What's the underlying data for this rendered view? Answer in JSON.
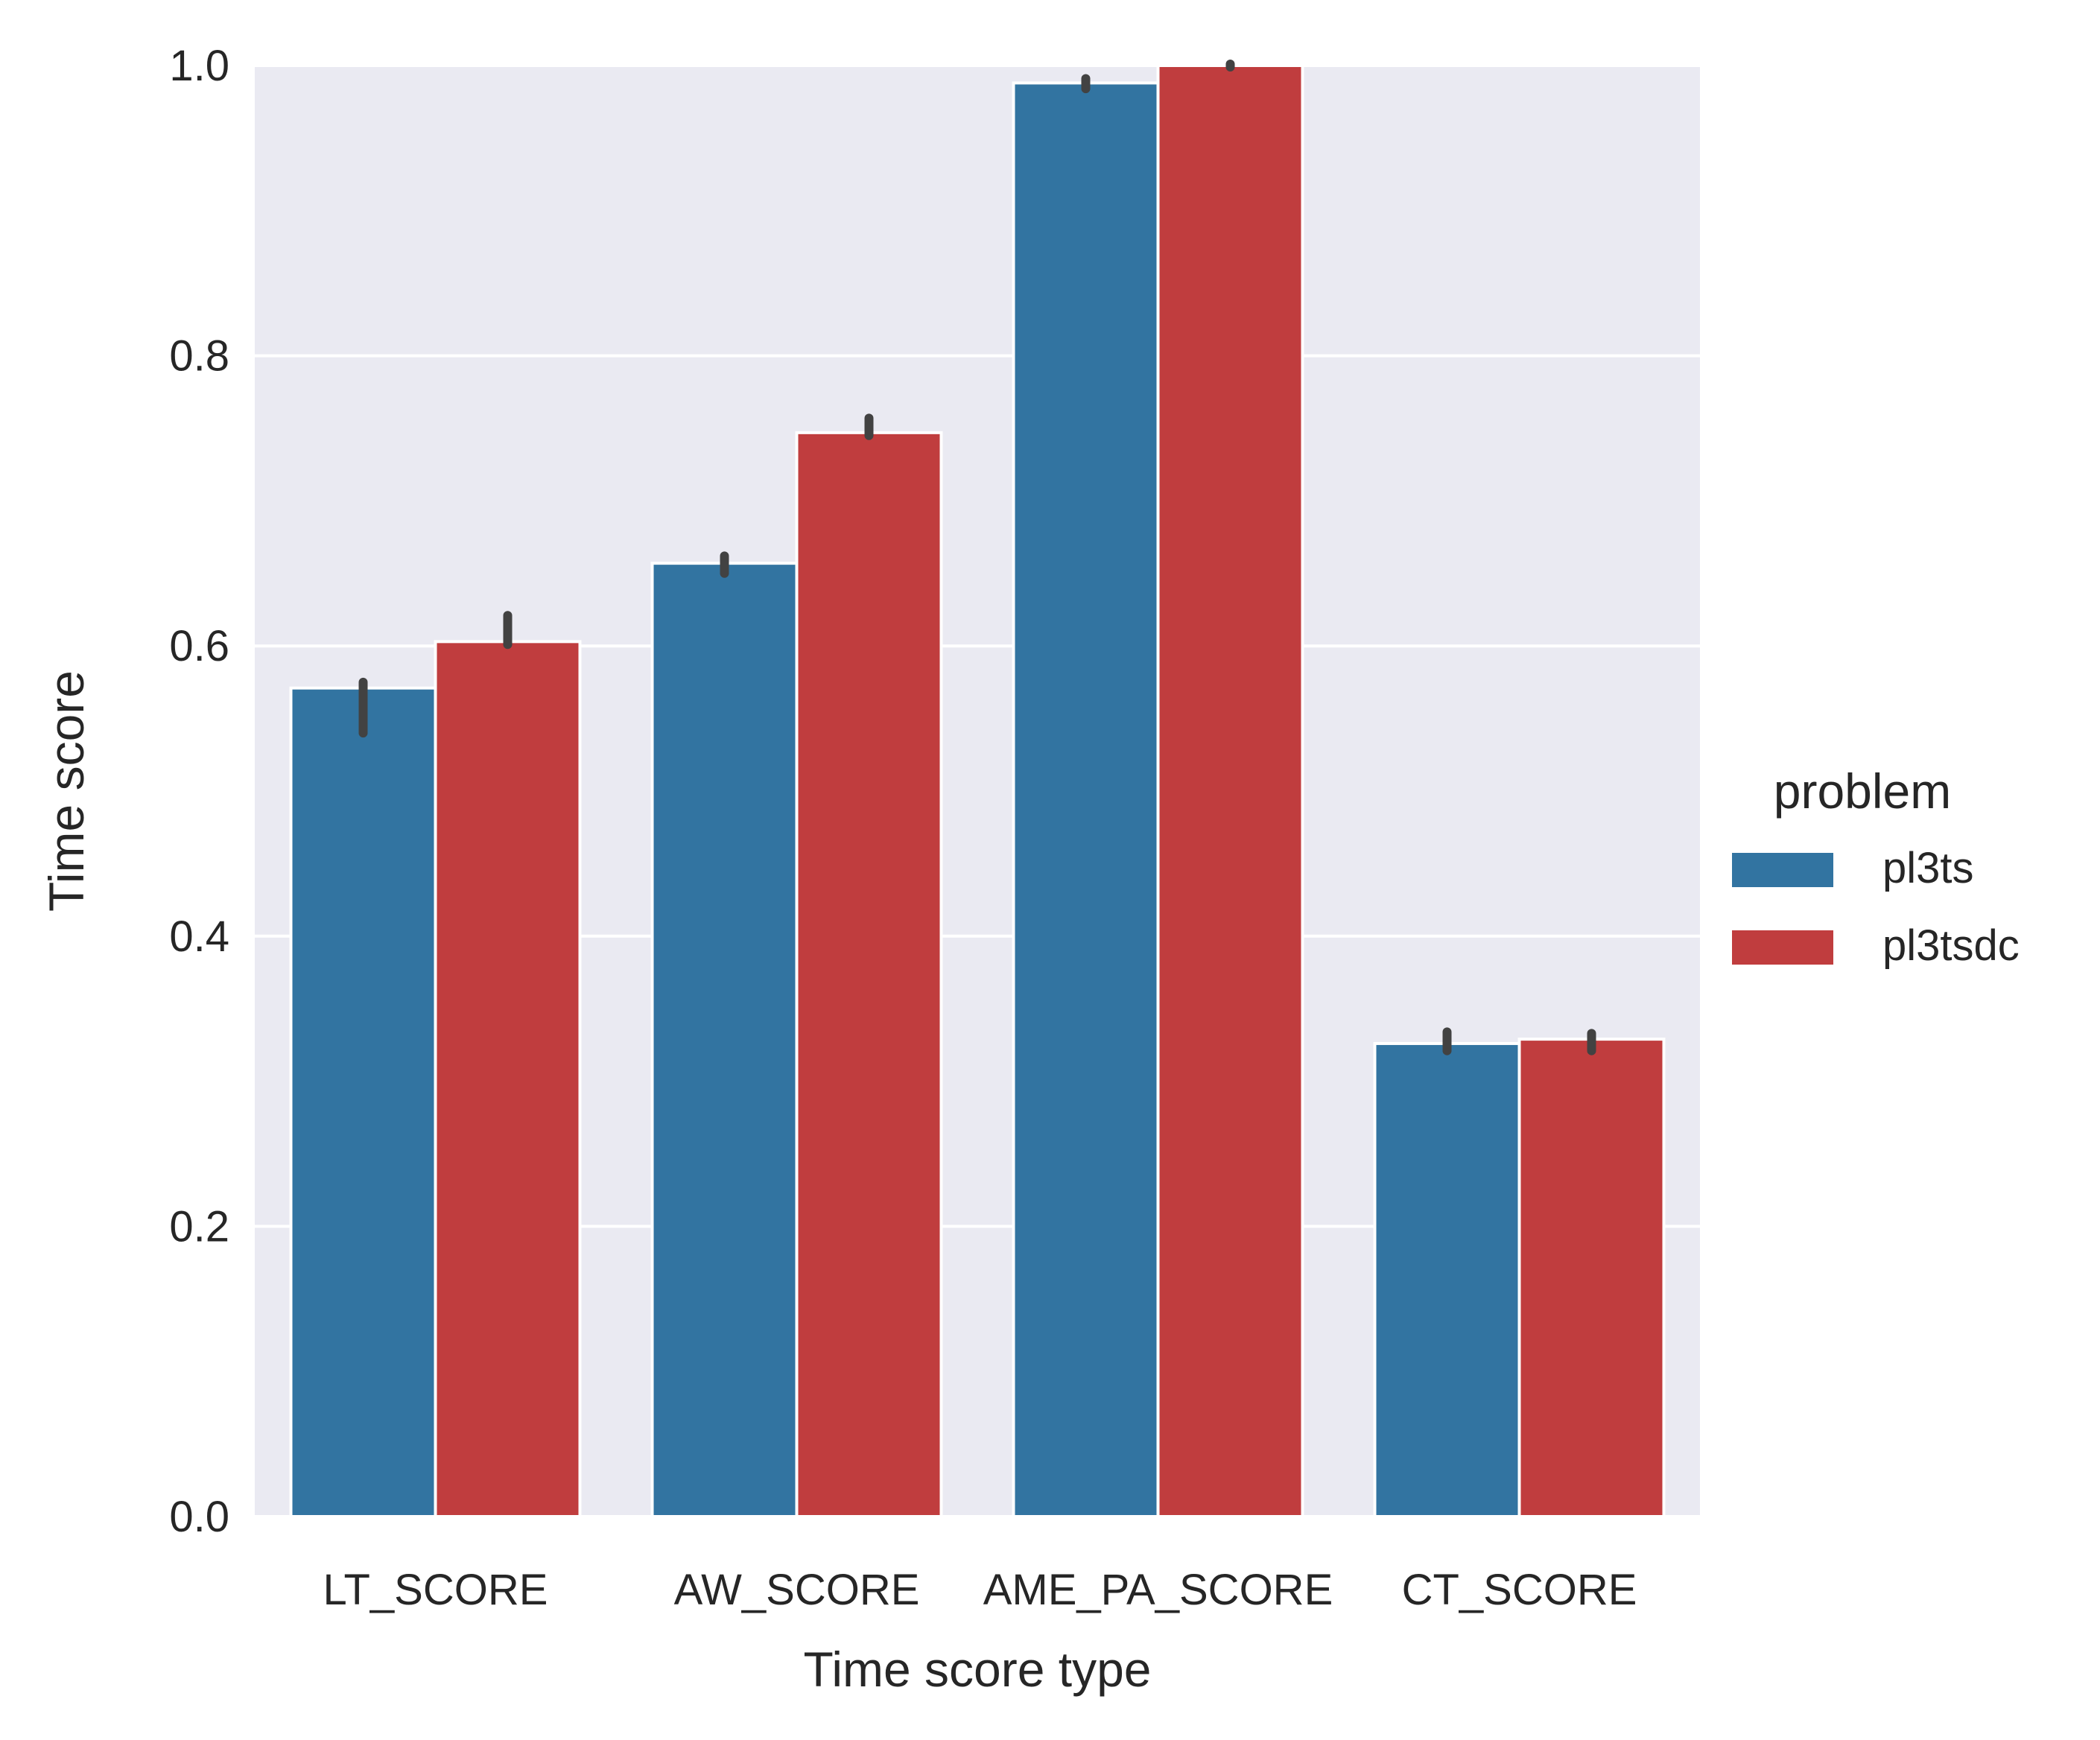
{
  "chart_data": {
    "type": "bar",
    "title": "",
    "xlabel": "Time score type",
    "ylabel": "Time score",
    "categories": [
      "LT_SCORE",
      "AW_SCORE",
      "AME_PA_SCORE",
      "CT_SCORE"
    ],
    "ylim": [
      0,
      1.0
    ],
    "yticks": [
      "0.0",
      "0.2",
      "0.4",
      "0.6",
      "0.8",
      "1.0"
    ],
    "grid": true,
    "legend": {
      "title": "problem",
      "placement": "right"
    },
    "series": [
      {
        "name": "pl3ts",
        "color": "#3274a1",
        "values": [
          0.571,
          0.657,
          0.988,
          0.326
        ],
        "error_low": [
          0.54,
          0.65,
          0.984,
          0.321
        ],
        "error_high": [
          0.575,
          0.662,
          0.991,
          0.334
        ]
      },
      {
        "name": "pl3tsdc",
        "color": "#c03d3e",
        "values": [
          0.603,
          0.747,
          1.0,
          0.329
        ],
        "error_low": [
          0.601,
          0.745,
          0.999,
          0.321
        ],
        "error_high": [
          0.621,
          0.757,
          1.001,
          0.333
        ]
      }
    ],
    "colors": {
      "plot_background": "#eaeaf2",
      "grid": "#ffffff",
      "errorbar": "#424242"
    }
  }
}
